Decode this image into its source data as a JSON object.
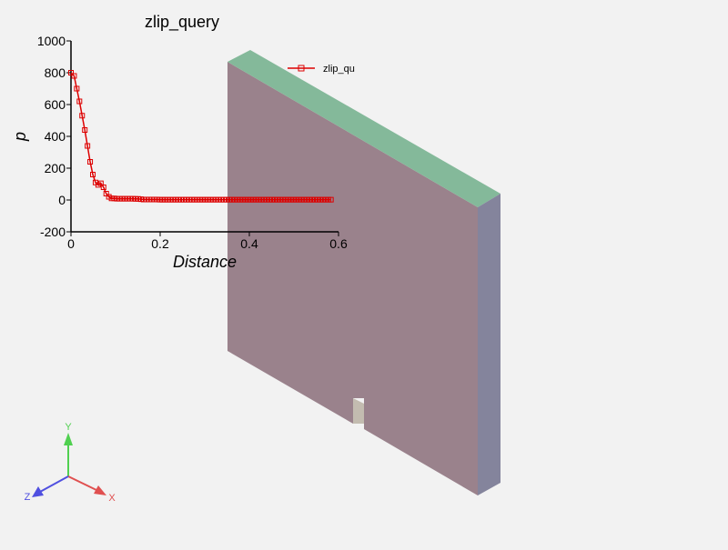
{
  "view": {
    "background": "#f2f2f2",
    "slab": {
      "top_color": "#84b99a",
      "front_color": "#9a828c",
      "side_color": "#84849c",
      "notch_color": "#c3bcb0"
    }
  },
  "axes_triad": {
    "x_label": "X",
    "y_label": "Y",
    "z_label": "Z",
    "x_color": "#e05050",
    "y_color": "#50d050",
    "z_color": "#5050e0"
  },
  "chart_data": {
    "type": "line",
    "title": "zlip_query",
    "xlabel": "Distance",
    "ylabel": "p",
    "xlim": [
      0,
      0.6
    ],
    "ylim": [
      -200,
      1000
    ],
    "xticks": [
      "0",
      "0.2",
      "0.4",
      "0.6"
    ],
    "yticks": [
      "-200",
      "0",
      "200",
      "400",
      "600",
      "800",
      "1000"
    ],
    "grid": false,
    "legend_position": "top-right",
    "series": [
      {
        "name": "zlip_qu",
        "color": "#dd0000",
        "marker": "square",
        "x": [
          0.0,
          0.007,
          0.013,
          0.019,
          0.025,
          0.031,
          0.037,
          0.043,
          0.049,
          0.055,
          0.061,
          0.067,
          0.073,
          0.079,
          0.085,
          0.091,
          0.097,
          0.103,
          0.109,
          0.115,
          0.121,
          0.127,
          0.133,
          0.139,
          0.145,
          0.151,
          0.157,
          0.163,
          0.169,
          0.175,
          0.181,
          0.187,
          0.193,
          0.199,
          0.205,
          0.211,
          0.217,
          0.223,
          0.229,
          0.235,
          0.241,
          0.247,
          0.253,
          0.259,
          0.265,
          0.271,
          0.277,
          0.283,
          0.289,
          0.295,
          0.301,
          0.307,
          0.313,
          0.319,
          0.325,
          0.331,
          0.337,
          0.343,
          0.349,
          0.355,
          0.361,
          0.367,
          0.373,
          0.379,
          0.385,
          0.391,
          0.397,
          0.403,
          0.409,
          0.415,
          0.421,
          0.427,
          0.433,
          0.439,
          0.445,
          0.451,
          0.457,
          0.463,
          0.469,
          0.475,
          0.481,
          0.487,
          0.493,
          0.499,
          0.505,
          0.511,
          0.517,
          0.523,
          0.529,
          0.535,
          0.541,
          0.547,
          0.553,
          0.559,
          0.565,
          0.571,
          0.577,
          0.583
        ],
        "y": [
          800,
          780,
          700,
          620,
          530,
          440,
          340,
          240,
          160,
          110,
          95,
          105,
          80,
          40,
          20,
          10,
          10,
          8,
          8,
          8,
          8,
          8,
          8,
          8,
          7,
          7,
          5,
          3,
          3,
          3,
          3,
          3,
          3,
          2,
          2,
          2,
          2,
          2,
          2,
          2,
          2,
          2,
          2,
          2,
          2,
          2,
          2,
          2,
          2,
          2,
          2,
          2,
          2,
          2,
          2,
          2,
          2,
          2,
          2,
          2,
          2,
          2,
          2,
          2,
          2,
          2,
          2,
          2,
          2,
          2,
          2,
          2,
          2,
          2,
          2,
          2,
          2,
          2,
          2,
          2,
          2,
          2,
          2,
          2,
          2,
          2,
          2,
          2,
          2,
          2,
          2,
          2,
          2,
          2,
          2,
          2,
          2,
          2
        ]
      }
    ]
  }
}
